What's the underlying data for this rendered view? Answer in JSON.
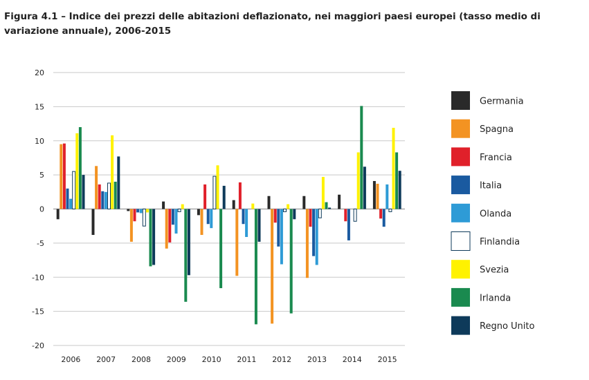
{
  "chart_data": {
    "type": "bar",
    "title": "Figura 4.1 – Indice dei prezzi delle abitazioni deflazionato, nei maggiori paesi europei (tasso medio di variazione annuale), 2006-2015",
    "xlabel": "",
    "ylabel": "",
    "ylim": [
      -20,
      20
    ],
    "yticks": [
      20,
      15,
      10,
      5,
      0,
      -5,
      -10,
      -15,
      -20
    ],
    "grid": true,
    "legend": "right",
    "categories": [
      "2006",
      "2007",
      "2008",
      "2009",
      "2010",
      "2011",
      "2012",
      "2013",
      "2014",
      "2015"
    ],
    "series": [
      {
        "name": "Germania",
        "color": "#2a2a2a",
        "values": [
          -1.5,
          -3.8,
          -0.3,
          1.1,
          -0.9,
          1.3,
          1.9,
          1.9,
          2.1,
          4.1
        ]
      },
      {
        "name": "Spagna",
        "color": "#f39322",
        "values": [
          9.5,
          6.3,
          -4.8,
          -5.8,
          -3.8,
          -9.8,
          -16.8,
          -10.1,
          0.0,
          3.7
        ]
      },
      {
        "name": "Francia",
        "color": "#e0202a",
        "values": [
          9.6,
          3.6,
          -1.8,
          -4.9,
          3.6,
          3.9,
          -2.0,
          -2.6,
          -1.8,
          -1.4
        ]
      },
      {
        "name": "Italia",
        "color": "#1a5aa0",
        "values": [
          3.0,
          2.6,
          -0.5,
          -2.3,
          -2.2,
          -2.2,
          -5.5,
          -6.9,
          -4.6,
          -2.6
        ]
      },
      {
        "name": "Olanda",
        "color": "#2e9bd6",
        "values": [
          1.5,
          2.5,
          -0.6,
          -3.6,
          -2.8,
          -4.1,
          -8.1,
          -8.2,
          0.0,
          3.6
        ]
      },
      {
        "name": "Finlandia",
        "color": "#ffffff",
        "values": [
          5.5,
          3.8,
          -2.5,
          -0.4,
          4.8,
          0.0,
          -0.4,
          -1.3,
          -1.8,
          -0.4
        ]
      },
      {
        "name": "Svezia",
        "color": "#fff200",
        "values": [
          11.1,
          10.8,
          -0.5,
          0.7,
          6.4,
          0.8,
          0.7,
          4.7,
          8.3,
          11.9
        ]
      },
      {
        "name": "Irlanda",
        "color": "#1a8a4f",
        "values": [
          12.0,
          4.0,
          -8.4,
          -13.6,
          -11.6,
          -16.9,
          -15.3,
          1.0,
          15.1,
          8.3
        ]
      },
      {
        "name": "Regno Unito",
        "color": "#0e3a5a",
        "values": [
          5.0,
          7.7,
          -8.2,
          -9.7,
          3.4,
          -4.8,
          -1.5,
          0.2,
          6.2,
          5.6
        ]
      }
    ]
  }
}
